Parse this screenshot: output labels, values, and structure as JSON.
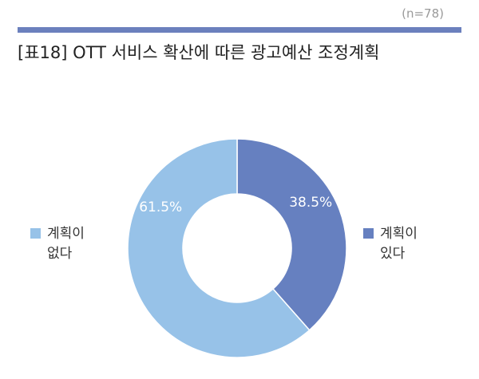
{
  "header": {
    "sample_size": "(n=78)",
    "title": "[표18] OTT 서비스 확산에 따른 광고예산 조정계획"
  },
  "colors": {
    "title_bar": "#6b80bd",
    "has_plan": "#6680c0",
    "no_plan": "#97c2e8"
  },
  "chart_data": {
    "type": "pie",
    "donut": true,
    "categories": [
      "계획이 있다",
      "계획이 없다"
    ],
    "values": [
      38.5,
      61.5
    ],
    "value_labels": [
      "38.5%",
      "61.5%"
    ],
    "title": "[표18] OTT 서비스 확산에 따른 광고예산 조정계획",
    "legend": [
      "계획이 없다",
      "계획이 있다"
    ],
    "legend_position": "left-right"
  }
}
